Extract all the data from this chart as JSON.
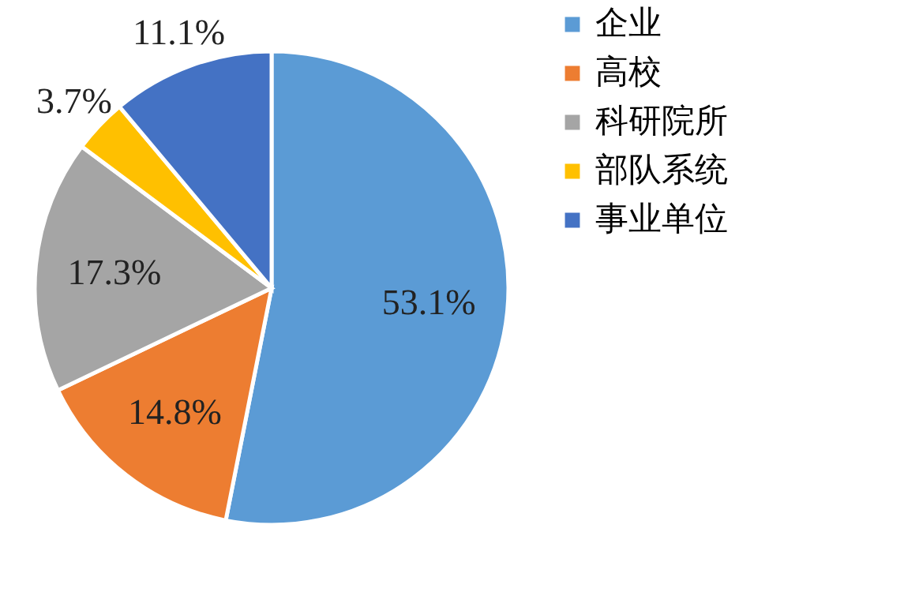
{
  "chart_data": {
    "type": "pie",
    "categories": [
      "企业",
      "高校",
      "科研院所",
      "部队系统",
      "事业单位"
    ],
    "values": [
      53.1,
      14.8,
      17.3,
      3.7,
      11.1
    ],
    "colors": [
      "#5b9bd5",
      "#ed7d31",
      "#a5a5a5",
      "#ffc000",
      "#4472c4"
    ],
    "value_labels": [
      "53.1%",
      "14.8%",
      "17.3%",
      "3.7%",
      "11.1%"
    ],
    "legend": "right"
  }
}
